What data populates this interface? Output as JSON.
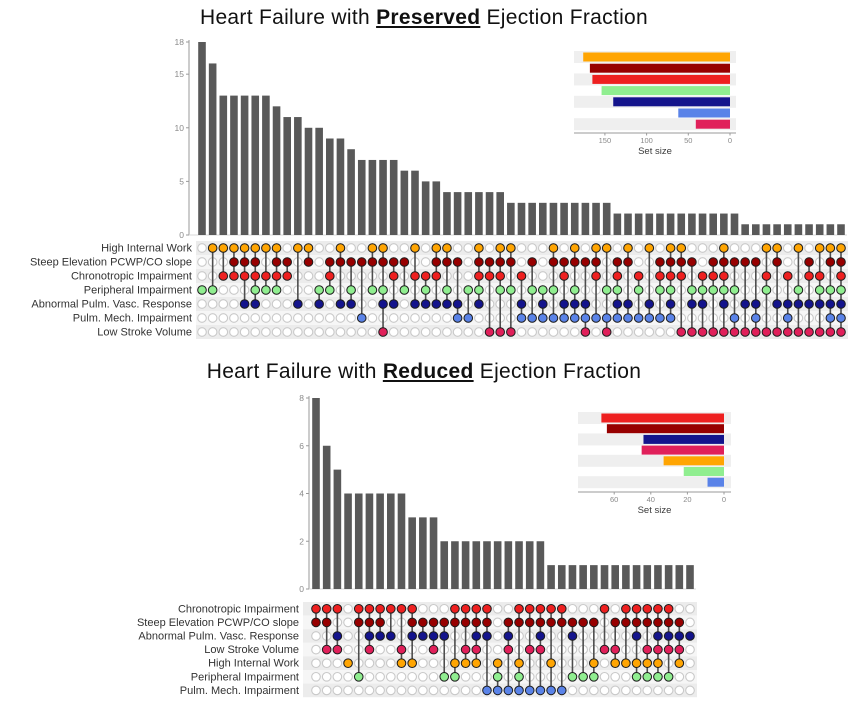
{
  "page": {
    "background": "#ffffff"
  },
  "chart_data": [
    {
      "type": "upset",
      "chart": "bar-matrix (UpSet plot)",
      "title_parts": {
        "prefix": "Heart Failure with ",
        "emphasis": "Preserved",
        "suffix": " Ejection Fraction"
      },
      "bar_color": "#595959",
      "empty_dot_color": "#ffffff",
      "empty_dot_stroke": "#c9c9c9",
      "stripe_color": "#ececec",
      "y_axis": {
        "ticks": [
          0,
          5,
          10,
          15,
          18
        ],
        "max": 18,
        "label": ""
      },
      "sets": [
        {
          "name": "High Internal Work",
          "color": "#FFA502",
          "size": 176
        },
        {
          "name": "Steep Elevation PCWP/CO slope",
          "color": "#970000",
          "size": 168
        },
        {
          "name": "Chronotropic Impairment",
          "color": "#EE2020",
          "size": 165
        },
        {
          "name": "Peripheral Impairment",
          "color": "#90EE90",
          "size": 154
        },
        {
          "name": "Abnormal Pulm. Vasc. Response",
          "color": "#14148C",
          "size": 140
        },
        {
          "name": "Pulm. Mech. Impairment",
          "color": "#5A83E8",
          "size": 62
        },
        {
          "name": "Low Stroke Volume",
          "color": "#E0205A",
          "size": 41
        }
      ],
      "set_size_axis": {
        "ticks": [
          150,
          100,
          50,
          0
        ],
        "label": "Set size"
      },
      "intersections": [
        {
          "v": 18,
          "m": [
            3
          ]
        },
        {
          "v": 16,
          "m": [
            0,
            3
          ]
        },
        {
          "v": 13,
          "m": [
            0,
            2
          ]
        },
        {
          "v": 13,
          "m": [
            0,
            1,
            2
          ]
        },
        {
          "v": 13,
          "m": [
            0,
            1,
            2,
            4
          ]
        },
        {
          "v": 13,
          "m": [
            0,
            1,
            2,
            3,
            4
          ]
        },
        {
          "v": 13,
          "m": [
            0,
            2,
            3
          ]
        },
        {
          "v": 12,
          "m": [
            0,
            1,
            2,
            3
          ]
        },
        {
          "v": 11,
          "m": [
            1,
            2
          ]
        },
        {
          "v": 11,
          "m": [
            0,
            4
          ]
        },
        {
          "v": 10,
          "m": [
            0,
            1
          ]
        },
        {
          "v": 10,
          "m": [
            3,
            4
          ]
        },
        {
          "v": 9,
          "m": [
            1,
            2,
            3
          ]
        },
        {
          "v": 9,
          "m": [
            0,
            1,
            4
          ]
        },
        {
          "v": 8,
          "m": [
            1,
            3,
            4
          ]
        },
        {
          "v": 7,
          "m": [
            1,
            5
          ]
        },
        {
          "v": 7,
          "m": [
            0,
            1,
            3
          ]
        },
        {
          "v": 7,
          "m": [
            0,
            1,
            3,
            4,
            6
          ]
        },
        {
          "v": 7,
          "m": [
            1,
            2,
            4
          ]
        },
        {
          "v": 6,
          "m": [
            1,
            3
          ]
        },
        {
          "v": 6,
          "m": [
            0,
            2,
            4
          ]
        },
        {
          "v": 5,
          "m": [
            2,
            3,
            4
          ]
        },
        {
          "v": 5,
          "m": [
            0,
            1,
            2,
            4
          ]
        },
        {
          "v": 4,
          "m": [
            0,
            1,
            3,
            4
          ]
        },
        {
          "v": 4,
          "m": [
            1,
            4,
            5
          ]
        },
        {
          "v": 4,
          "m": [
            3,
            5
          ]
        },
        {
          "v": 4,
          "m": [
            0,
            1,
            2,
            3,
            4
          ]
        },
        {
          "v": 4,
          "m": [
            1,
            2,
            6
          ]
        },
        {
          "v": 4,
          "m": [
            0,
            1,
            2,
            3,
            6
          ]
        },
        {
          "v": 3,
          "m": [
            0,
            1,
            3,
            6
          ]
        },
        {
          "v": 3,
          "m": [
            2,
            4,
            5
          ]
        },
        {
          "v": 3,
          "m": [
            1,
            3,
            5
          ]
        },
        {
          "v": 3,
          "m": [
            3,
            4,
            5
          ]
        },
        {
          "v": 3,
          "m": [
            0,
            1,
            3,
            5
          ]
        },
        {
          "v": 3,
          "m": [
            1,
            2,
            4,
            5
          ]
        },
        {
          "v": 3,
          "m": [
            0,
            1,
            3,
            4,
            5
          ]
        },
        {
          "v": 3,
          "m": [
            1,
            4,
            5,
            6
          ]
        },
        {
          "v": 3,
          "m": [
            0,
            1,
            2,
            5
          ]
        },
        {
          "v": 3,
          "m": [
            0,
            3,
            5,
            6
          ]
        },
        {
          "v": 2,
          "m": [
            1,
            2,
            3,
            4,
            5
          ]
        },
        {
          "v": 2,
          "m": [
            0,
            1,
            4,
            5
          ]
        },
        {
          "v": 2,
          "m": [
            2,
            3,
            5
          ]
        },
        {
          "v": 2,
          "m": [
            0,
            4,
            5
          ]
        },
        {
          "v": 2,
          "m": [
            1,
            2,
            3,
            5
          ]
        },
        {
          "v": 2,
          "m": [
            0,
            1,
            2,
            3,
            4,
            5
          ]
        },
        {
          "v": 2,
          "m": [
            0,
            1,
            2,
            6
          ]
        },
        {
          "v": 2,
          "m": [
            1,
            3,
            4,
            6
          ]
        },
        {
          "v": 2,
          "m": [
            2,
            3,
            4,
            6
          ]
        },
        {
          "v": 2,
          "m": [
            1,
            2,
            3,
            6
          ]
        },
        {
          "v": 2,
          "m": [
            0,
            1,
            2,
            3,
            4,
            6
          ]
        },
        {
          "v": 2,
          "m": [
            1,
            3,
            5,
            6
          ]
        },
        {
          "v": 1,
          "m": [
            1,
            4,
            6
          ]
        },
        {
          "v": 1,
          "m": [
            1,
            4,
            5,
            6
          ]
        },
        {
          "v": 1,
          "m": [
            0,
            2,
            3,
            6
          ]
        },
        {
          "v": 1,
          "m": [
            0,
            1,
            4,
            6
          ]
        },
        {
          "v": 1,
          "m": [
            2,
            4,
            5,
            6
          ]
        },
        {
          "v": 1,
          "m": [
            0,
            3,
            4,
            6
          ]
        },
        {
          "v": 1,
          "m": [
            1,
            2,
            4,
            6
          ]
        },
        {
          "v": 1,
          "m": [
            0,
            2,
            3,
            4,
            6
          ]
        },
        {
          "v": 1,
          "m": [
            0,
            1,
            3,
            4,
            5,
            6
          ]
        },
        {
          "v": 1,
          "m": [
            0,
            1,
            2,
            3,
            4,
            5,
            6
          ]
        }
      ]
    },
    {
      "type": "upset",
      "chart": "bar-matrix (UpSet plot)",
      "title_parts": {
        "prefix": "Heart Failure with ",
        "emphasis": "Reduced",
        "suffix": " Ejection Fraction"
      },
      "bar_color": "#595959",
      "empty_dot_color": "#ffffff",
      "empty_dot_stroke": "#c9c9c9",
      "stripe_color": "#ececec",
      "y_axis": {
        "ticks": [
          0,
          2,
          4,
          6,
          8
        ],
        "max": 8,
        "label": ""
      },
      "sets": [
        {
          "name": "Chronotropic Impairment",
          "color": "#EE2020",
          "size": 67
        },
        {
          "name": "Steep Elevation PCWP/CO slope",
          "color": "#970000",
          "size": 64
        },
        {
          "name": "Abnormal Pulm. Vasc. Response",
          "color": "#14148C",
          "size": 44
        },
        {
          "name": "Low Stroke Volume",
          "color": "#E0205A",
          "size": 45
        },
        {
          "name": "High Internal Work",
          "color": "#FFA502",
          "size": 33
        },
        {
          "name": "Peripheral Impairment",
          "color": "#90EE90",
          "size": 22
        },
        {
          "name": "Pulm. Mech. Impairment",
          "color": "#5A83E8",
          "size": 9
        }
      ],
      "set_size_axis": {
        "ticks": [
          60,
          40,
          20,
          0
        ],
        "label": "Set size"
      },
      "intersections": [
        {
          "v": 8,
          "m": [
            0,
            1
          ]
        },
        {
          "v": 6,
          "m": [
            0,
            1,
            3
          ]
        },
        {
          "v": 5,
          "m": [
            0,
            2,
            3
          ]
        },
        {
          "v": 4,
          "m": [
            4
          ]
        },
        {
          "v": 4,
          "m": [
            0,
            1,
            5
          ]
        },
        {
          "v": 4,
          "m": [
            0,
            1,
            2,
            3
          ]
        },
        {
          "v": 4,
          "m": [
            0,
            1,
            2
          ]
        },
        {
          "v": 4,
          "m": [
            0,
            2
          ]
        },
        {
          "v": 4,
          "m": [
            0,
            3,
            4
          ]
        },
        {
          "v": 3,
          "m": [
            0,
            1,
            2,
            4
          ]
        },
        {
          "v": 3,
          "m": [
            1,
            2
          ]
        },
        {
          "v": 3,
          "m": [
            1,
            2,
            3
          ]
        },
        {
          "v": 2,
          "m": [
            1,
            2,
            5
          ]
        },
        {
          "v": 2,
          "m": [
            0,
            1,
            4,
            5
          ]
        },
        {
          "v": 2,
          "m": [
            0,
            1,
            3,
            4
          ]
        },
        {
          "v": 2,
          "m": [
            0,
            1,
            2,
            3,
            4
          ]
        },
        {
          "v": 2,
          "m": [
            0,
            1,
            2,
            6
          ]
        },
        {
          "v": 2,
          "m": [
            4,
            5,
            6
          ]
        },
        {
          "v": 2,
          "m": [
            1,
            2,
            3,
            6
          ]
        },
        {
          "v": 2,
          "m": [
            0,
            1,
            4,
            5,
            6
          ]
        },
        {
          "v": 2,
          "m": [
            0,
            1,
            3,
            6
          ]
        },
        {
          "v": 2,
          "m": [
            0,
            1,
            2,
            3,
            6
          ]
        },
        {
          "v": 1,
          "m": [
            0,
            1,
            4,
            6
          ]
        },
        {
          "v": 1,
          "m": [
            0,
            1,
            6
          ]
        },
        {
          "v": 1,
          "m": [
            1,
            2,
            5
          ]
        },
        {
          "v": 1,
          "m": [
            1,
            5
          ]
        },
        {
          "v": 1,
          "m": [
            1,
            4,
            5
          ]
        },
        {
          "v": 1,
          "m": [
            0,
            3
          ]
        },
        {
          "v": 1,
          "m": [
            1,
            3,
            4
          ]
        },
        {
          "v": 1,
          "m": [
            0,
            1,
            4
          ]
        },
        {
          "v": 1,
          "m": [
            0,
            1,
            2,
            4,
            5
          ]
        },
        {
          "v": 1,
          "m": [
            0,
            1,
            3,
            4,
            5
          ]
        },
        {
          "v": 1,
          "m": [
            0,
            1,
            2,
            3,
            4,
            5
          ]
        },
        {
          "v": 1,
          "m": [
            0,
            1,
            2,
            3,
            5
          ]
        },
        {
          "v": 1,
          "m": [
            1,
            2,
            3,
            4
          ]
        },
        {
          "v": 1,
          "m": [
            2
          ]
        }
      ]
    }
  ]
}
